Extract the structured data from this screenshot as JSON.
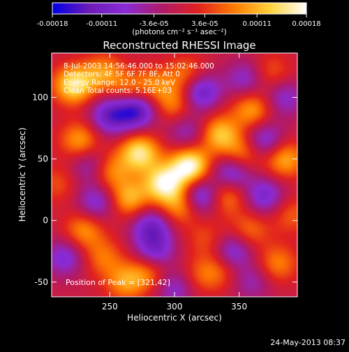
{
  "chart_data": {
    "type": "heatmap",
    "title": "Reconstructed RHESSI Image",
    "xlabel": "Heliocentric X (arcsec)",
    "ylabel": "Heliocentric Y (arcsec)",
    "xlim": [
      205,
      395
    ],
    "ylim": [
      -62,
      136
    ],
    "x_ticks": [
      250,
      300,
      350
    ],
    "y_ticks": [
      -50,
      0,
      50,
      100
    ],
    "colorbar": {
      "ticks": [
        "-0.00018",
        "-0.00011",
        "-3.6e-05",
        "3.6e-05",
        "0.00011",
        "0.00018"
      ],
      "tick_values": [
        -0.00018,
        -0.00011,
        -3.6e-05,
        3.6e-05,
        0.00011,
        0.00018
      ],
      "range": [
        -0.00018,
        0.00018
      ],
      "units": "(photons cm⁻² s⁻¹ asec⁻²)",
      "colormap": [
        "#0000e6",
        "#6d1bb8",
        "#8a2bd6",
        "#b01a6a",
        "#e02020",
        "#ff7a00",
        "#ffd23a",
        "#ffffff"
      ]
    },
    "info": [
      "8-Jul-2003 14:56:46.000 to 15:02:46.000",
      "Detectors: 4F 5F 6F 7F 8F, Att 0",
      "Energy Range: 12.0 - 25.0 keV",
      "Clean    Total counts: 5.16E+03"
    ],
    "peak_label": "Position of Peak = [321,42]",
    "sources": [
      {
        "x": 312,
        "y": 44,
        "value": 0.00018
      },
      {
        "x": 292,
        "y": 30,
        "value": 0.00016
      },
      {
        "x": 273,
        "y": 55,
        "value": 0.00015
      },
      {
        "x": 265,
        "y": 18,
        "value": 0.00011
      },
      {
        "x": 305,
        "y": 12,
        "value": 0.0001
      },
      {
        "x": 335,
        "y": 70,
        "value": 0.00012
      },
      {
        "x": 360,
        "y": 90,
        "value": 0.0001
      },
      {
        "x": 385,
        "y": 50,
        "value": 0.00011
      },
      {
        "x": 352,
        "y": 53,
        "value": 0.0001
      },
      {
        "x": 340,
        "y": 20,
        "value": 9e-05
      },
      {
        "x": 300,
        "y": 95,
        "value": 8e-05
      },
      {
        "x": 285,
        "y": 110,
        "value": 7e-05
      },
      {
        "x": 245,
        "y": 120,
        "value": 9e-05
      },
      {
        "x": 222,
        "y": 110,
        "value": 0.00015
      },
      {
        "x": 227,
        "y": 65,
        "value": 0.0001
      },
      {
        "x": 250,
        "y": 40,
        "value": 9e-05
      },
      {
        "x": 230,
        "y": -8,
        "value": 9e-05
      },
      {
        "x": 245,
        "y": -30,
        "value": 7e-05
      },
      {
        "x": 262,
        "y": -50,
        "value": 9e-05
      },
      {
        "x": 280,
        "y": -42,
        "value": 8e-05
      },
      {
        "x": 265,
        "y": 105,
        "value": 8e-05
      },
      {
        "x": 325,
        "y": -15,
        "value": 5e-05
      },
      {
        "x": 358,
        "y": -8,
        "value": 7e-05
      },
      {
        "x": 380,
        "y": -35,
        "value": 8e-05
      },
      {
        "x": 335,
        "y": -40,
        "value": 6e-05
      },
      {
        "x": 310,
        "y": 118,
        "value": 8e-05
      },
      {
        "x": 375,
        "y": 120,
        "value": 6e-05
      },
      {
        "x": 390,
        "y": 5,
        "value": 6e-05
      },
      {
        "x": 210,
        "y": 30,
        "value": 5e-05
      },
      {
        "x": 320,
        "y": -45,
        "value": 5e-05
      },
      {
        "x": 270,
        "y": 90,
        "value": -0.00016
      },
      {
        "x": 250,
        "y": 85,
        "value": -0.00012
      },
      {
        "x": 320,
        "y": 105,
        "value": -0.00013
      },
      {
        "x": 282,
        "y": -5,
        "value": -0.00011
      },
      {
        "x": 320,
        "y": 20,
        "value": -0.00013
      },
      {
        "x": 345,
        "y": 40,
        "value": -0.00012
      },
      {
        "x": 370,
        "y": 65,
        "value": -0.0001
      },
      {
        "x": 240,
        "y": 15,
        "value": -9e-05
      },
      {
        "x": 285,
        "y": -25,
        "value": -0.0001
      },
      {
        "x": 345,
        "y": -25,
        "value": -0.0001
      },
      {
        "x": 370,
        "y": 20,
        "value": -0.0001
      },
      {
        "x": 215,
        "y": -30,
        "value": -9e-05
      },
      {
        "x": 300,
        "y": -55,
        "value": -8e-05
      },
      {
        "x": 385,
        "y": 100,
        "value": -8e-05
      },
      {
        "x": 235,
        "y": 45,
        "value": -8e-05
      },
      {
        "x": 355,
        "y": 115,
        "value": -8e-05
      },
      {
        "x": 310,
        "y": 72,
        "value": -7e-05
      },
      {
        "x": 360,
        "y": -50,
        "value": -6e-05
      }
    ]
  },
  "timestamp": "24-May-2013 08:37"
}
